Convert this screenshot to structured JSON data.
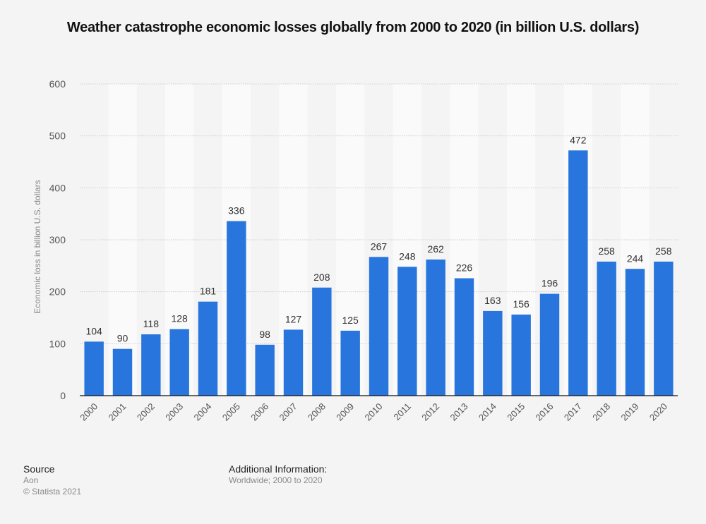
{
  "title": "Weather catastrophe economic losses globally from 2000 to 2020 (in billion U.S. dollars)",
  "footer": {
    "source_label": "Source",
    "source_value": "Aon",
    "copyright": "© Statista 2021",
    "additional_label": "Additional Information:",
    "additional_value": "Worldwide; 2000 to 2020"
  },
  "colors": {
    "bar": "#2876dd",
    "background": "#f4f4f4",
    "band_light": "#fafafa"
  },
  "chart_data": {
    "type": "bar",
    "title": "Weather catastrophe economic losses globally from 2000 to 2020 (in billion U.S. dollars)",
    "xlabel": "",
    "ylabel": "Economic loss in billion U.S. dollars",
    "ylim": [
      0,
      600
    ],
    "yticks": [
      0,
      100,
      200,
      300,
      400,
      500,
      600
    ],
    "grid": true,
    "legend": "none",
    "categories": [
      "2000",
      "2001",
      "2002",
      "2003",
      "2004",
      "2005",
      "2006",
      "2007",
      "2008",
      "2009",
      "2010",
      "2011",
      "2012",
      "2013",
      "2014",
      "2015",
      "2016",
      "2017",
      "2018",
      "2019",
      "2020"
    ],
    "values": [
      104,
      90,
      118,
      128,
      181,
      336,
      98,
      127,
      208,
      125,
      267,
      248,
      262,
      226,
      163,
      156,
      196,
      472,
      258,
      244,
      258
    ]
  }
}
